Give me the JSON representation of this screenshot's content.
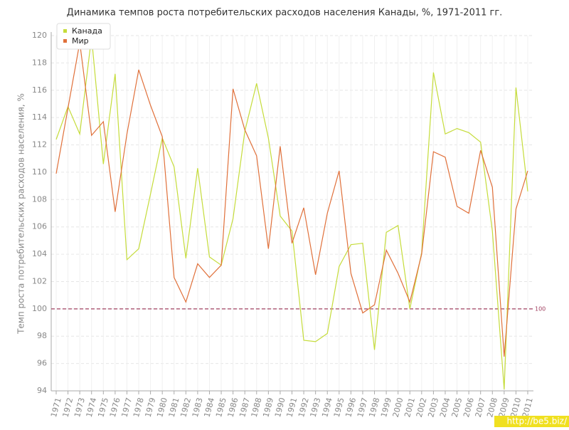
{
  "chart_data": {
    "type": "line",
    "title": "Динамика темпов роста потребительских расходов населения Канады, %, 1971-2011 гг.",
    "y_label": "Темп роста потребительских расходов населения, %",
    "x": [
      1971,
      1972,
      1973,
      1974,
      1975,
      1976,
      1977,
      1978,
      1979,
      1980,
      1981,
      1982,
      1983,
      1984,
      1985,
      1986,
      1987,
      1988,
      1989,
      1990,
      1991,
      1992,
      1993,
      1994,
      1995,
      1996,
      1997,
      1998,
      1999,
      2000,
      2001,
      2002,
      2003,
      2004,
      2005,
      2006,
      2007,
      2008,
      2009,
      2010,
      2011
    ],
    "xlim": [
      1971,
      2011
    ],
    "ylim": [
      94,
      120
    ],
    "yticks": [
      94,
      96,
      98,
      100,
      102,
      104,
      106,
      108,
      110,
      112,
      114,
      116,
      118,
      120
    ],
    "grid": true,
    "legend": "top-left",
    "reference_line": 100,
    "watermark": "http://be5.biz/",
    "series": [
      {
        "name": "Канада",
        "color": "#c5dc3a",
        "values": [
          112.4,
          114.8,
          112.8,
          119.9,
          110.6,
          117.2,
          103.6,
          104.4,
          108.4,
          112.5,
          110.4,
          103.7,
          110.3,
          103.8,
          103.2,
          106.6,
          113.0,
          116.5,
          112.5,
          106.8,
          105.7,
          97.7,
          97.6,
          98.2,
          103.1,
          104.7,
          104.8,
          97.0,
          105.6,
          106.1,
          100.0,
          104.1,
          117.3,
          112.8,
          113.2,
          112.9,
          112.2,
          105.7,
          94.1,
          116.2,
          108.6
        ]
      },
      {
        "name": "Мир",
        "color": "#e0703a",
        "values": [
          109.9,
          114.7,
          119.5,
          112.7,
          113.7,
          107.1,
          112.8,
          117.5,
          114.9,
          112.6,
          102.3,
          100.5,
          103.3,
          102.3,
          103.2,
          116.1,
          113.1,
          111.2,
          104.4,
          111.9,
          104.8,
          107.4,
          102.5,
          107.0,
          110.1,
          102.6,
          99.7,
          100.3,
          104.3,
          102.6,
          100.5,
          104.0,
          111.5,
          111.1,
          107.5,
          107.0,
          111.6,
          108.9,
          96.5,
          107.3,
          110.1
        ]
      }
    ]
  }
}
